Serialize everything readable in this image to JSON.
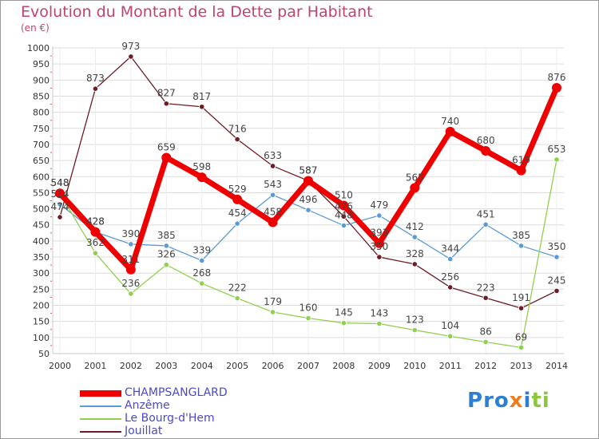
{
  "title": "Evolution du Montant de la Dette par Habitant",
  "unit_label": "(en €)",
  "logo_text": "Proxiti",
  "chart_data": {
    "type": "line",
    "title": "Evolution du Montant de la Dette par Habitant",
    "subtitle": "(en €)",
    "x": [
      "2000",
      "2001",
      "2002",
      "2003",
      "2004",
      "2005",
      "2006",
      "2007",
      "2008",
      "2009",
      "2010",
      "2011",
      "2012",
      "2013",
      "2014"
    ],
    "ylim": [
      50,
      1000
    ],
    "yticks": [
      50,
      100,
      150,
      200,
      250,
      300,
      350,
      400,
      450,
      500,
      550,
      600,
      650,
      700,
      750,
      800,
      850,
      900,
      950,
      1000
    ],
    "grid": true,
    "legend_position": "bottom-left",
    "series": [
      {
        "name": "CHAMPSANGLARD",
        "color": "#ee0000",
        "values": [
          548,
          428,
          311,
          659,
          598,
          529,
          458,
          587,
          510,
          393,
          565,
          740,
          680,
          619,
          876
        ]
      },
      {
        "name": "Anzême",
        "color": "#5b9bd5",
        "values": [
          514,
          428,
          390,
          385,
          339,
          454,
          543,
          496,
          448,
          479,
          412,
          344,
          451,
          385,
          350
        ]
      },
      {
        "name": "Le Bourg-d'Hem",
        "color": "#8fd14f",
        "values": [
          548,
          362,
          236,
          326,
          268,
          222,
          179,
          160,
          145,
          143,
          123,
          104,
          86,
          69,
          653
        ]
      },
      {
        "name": "Jouillat",
        "color": "#6b1c24",
        "values": [
          474,
          873,
          973,
          827,
          817,
          716,
          633,
          587,
          476,
          350,
          328,
          256,
          223,
          191,
          245
        ]
      }
    ]
  }
}
